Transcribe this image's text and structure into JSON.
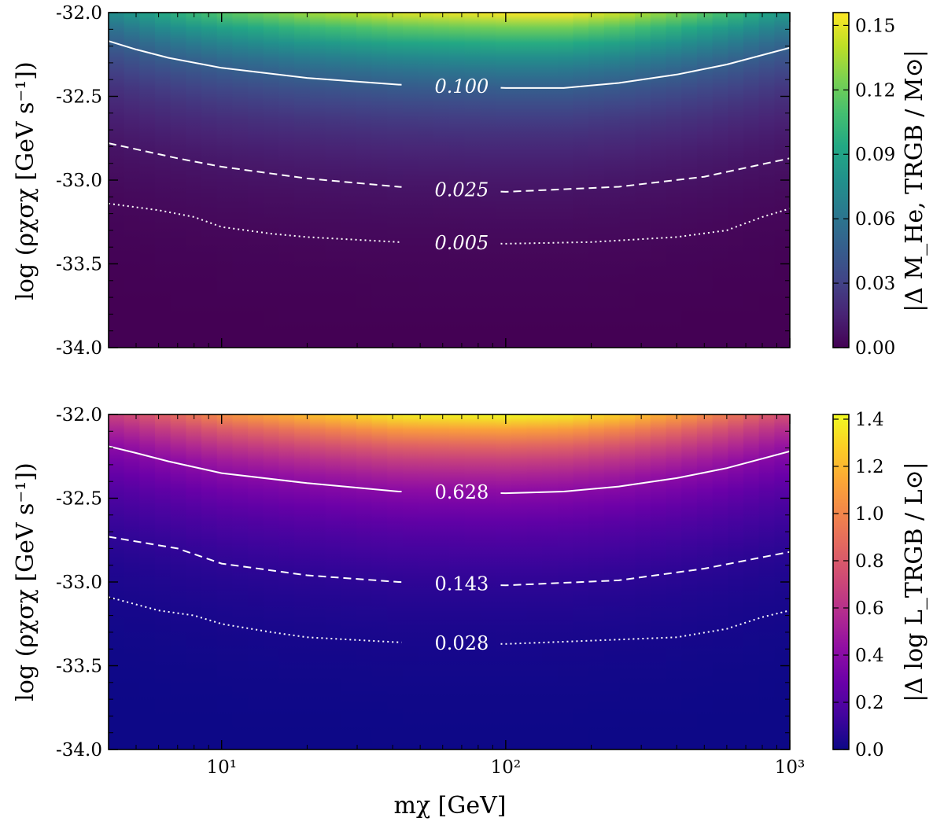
{
  "chart_data": [
    {
      "type": "heatmap",
      "title": "",
      "xscale": "log",
      "xlabel": "",
      "xlim": [
        4,
        1000
      ],
      "xticks": [
        10,
        100,
        1000
      ],
      "xtick_labels": [
        "",
        "",
        ""
      ],
      "ylabel": "log (ρχσχ [GeV s⁻¹])",
      "ylim": [
        -34.0,
        -32.0
      ],
      "yticks": [
        -32.0,
        -32.5,
        -33.0,
        -33.5,
        -34.0
      ],
      "ytick_labels": [
        "-32.0",
        "-32.5",
        "-33.0",
        "-33.5",
        "-34.0"
      ],
      "colormap": "viridis",
      "colorbar": {
        "label": "|Δ M_He, TRGB / M⊙|",
        "range": [
          0.0,
          0.156
        ],
        "ticks": [
          0.0,
          0.03,
          0.06,
          0.09,
          0.12,
          0.15
        ],
        "tick_labels": [
          "0.00",
          "0.03",
          "0.06",
          "0.09",
          "0.12",
          "0.15"
        ]
      },
      "contours": [
        {
          "level": 0.1,
          "label": "0.100",
          "style": "solid",
          "x": [
            4,
            5,
            6.5,
            10,
            20,
            42,
            100,
            160,
            250,
            400,
            600,
            1000
          ],
          "y": [
            -32.17,
            -32.22,
            -32.27,
            -32.33,
            -32.39,
            -32.43,
            -32.45,
            -32.45,
            -32.42,
            -32.37,
            -32.31,
            -32.21
          ]
        },
        {
          "level": 0.025,
          "label": "0.025",
          "style": "dashed",
          "x": [
            4,
            7,
            10,
            20,
            42,
            100,
            250,
            500,
            1000
          ],
          "y": [
            -32.78,
            -32.87,
            -32.92,
            -32.99,
            -33.04,
            -33.07,
            -33.04,
            -32.98,
            -32.87
          ]
        },
        {
          "level": 0.005,
          "label": "0.005",
          "style": "dotted",
          "x": [
            4,
            6,
            8,
            10,
            15,
            20,
            42,
            100,
            200,
            400,
            600,
            800,
            1000
          ],
          "y": [
            -33.14,
            -33.18,
            -33.22,
            -33.28,
            -33.32,
            -33.34,
            -33.37,
            -33.38,
            -33.37,
            -33.34,
            -33.3,
            -33.22,
            -33.17
          ]
        }
      ]
    },
    {
      "type": "heatmap",
      "title": "",
      "xscale": "log",
      "xlabel": "mχ [GeV]",
      "xlim": [
        4,
        1000
      ],
      "xticks": [
        10,
        100,
        1000
      ],
      "xtick_labels": [
        "10¹",
        "10²",
        "10³"
      ],
      "ylabel": "log (ρχσχ [GeV s⁻¹])",
      "ylim": [
        -34.0,
        -32.0
      ],
      "yticks": [
        -32.0,
        -32.5,
        -33.0,
        -33.5,
        -34.0
      ],
      "ytick_labels": [
        "-32.0",
        "-32.5",
        "-33.0",
        "-33.5",
        "-34.0"
      ],
      "colormap": "plasma",
      "colorbar": {
        "label": "|Δ log L_TRGB / L⊙|",
        "range": [
          0.0,
          1.42
        ],
        "ticks": [
          0.0,
          0.2,
          0.4,
          0.6,
          0.8,
          1.0,
          1.2,
          1.4
        ],
        "tick_labels": [
          "0.0",
          "0.2",
          "0.4",
          "0.6",
          "0.8",
          "1.0",
          "1.2",
          "1.4"
        ]
      },
      "contours": [
        {
          "level": 0.628,
          "label": "0.628",
          "style": "solid",
          "x": [
            4,
            5,
            6.5,
            10,
            20,
            42,
            100,
            160,
            250,
            400,
            600,
            1000
          ],
          "y": [
            -32.19,
            -32.23,
            -32.28,
            -32.35,
            -32.41,
            -32.46,
            -32.47,
            -32.46,
            -32.43,
            -32.38,
            -32.32,
            -32.22
          ]
        },
        {
          "level": 0.143,
          "label": "0.143",
          "style": "dashed",
          "x": [
            4,
            7,
            10,
            20,
            42,
            100,
            250,
            500,
            1000
          ],
          "y": [
            -32.73,
            -32.8,
            -32.89,
            -32.96,
            -33.0,
            -33.02,
            -32.99,
            -32.92,
            -32.82
          ]
        },
        {
          "level": 0.028,
          "label": "0.028",
          "style": "dotted",
          "x": [
            4,
            6,
            8,
            10,
            15,
            20,
            42,
            100,
            200,
            400,
            600,
            800,
            1000
          ],
          "y": [
            -33.09,
            -33.17,
            -33.2,
            -33.25,
            -33.3,
            -33.33,
            -33.36,
            -33.37,
            -33.35,
            -33.33,
            -33.28,
            -33.21,
            -33.17
          ]
        }
      ]
    }
  ]
}
